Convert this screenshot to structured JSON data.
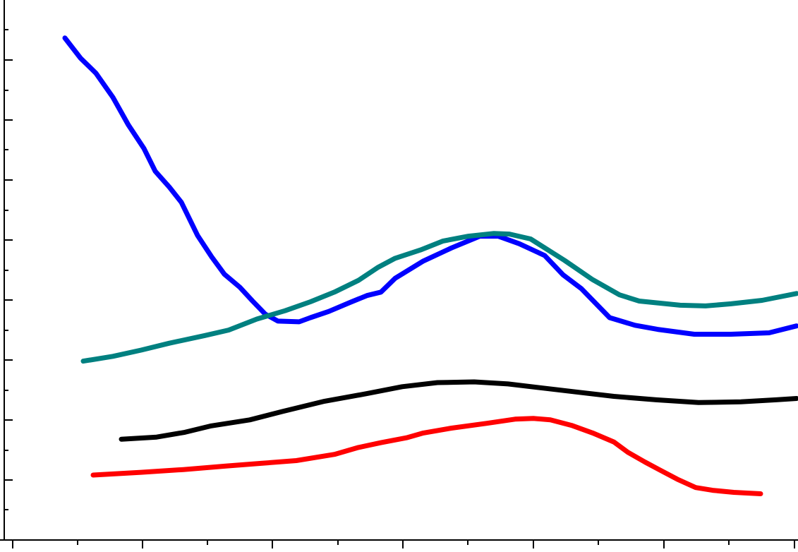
{
  "chart_data": {
    "type": "line",
    "title": "",
    "xlabel": "",
    "ylabel": "",
    "xlim": [
      0,
      1131
    ],
    "ylim": [
      0,
      782
    ],
    "grid": false,
    "legend": "none",
    "x_major_ticks": [
      18,
      202,
      386,
      571,
      756,
      941,
      1126
    ],
    "x_minor_ticks": [
      110,
      294,
      479,
      663,
      848,
      1033
    ],
    "y_major_ticks": [
      85,
      170,
      255,
      340,
      425,
      510,
      595,
      680
    ],
    "y_minor_ticks": [
      42,
      128,
      212,
      298,
      383,
      468,
      553,
      638,
      722
    ],
    "series": [
      {
        "color": "#0000ff",
        "x": [
          92,
          114,
          136,
          160,
          182,
          204,
          220,
          240,
          257,
          280,
          300,
          318,
          340,
          358,
          376,
          394,
          424,
          440,
          466,
          496,
          520,
          540,
          560,
          600,
          640,
          680,
          706,
          736,
          772,
          798,
          824,
          864,
          900,
          932,
          984,
          1036,
          1090,
          1129
        ],
        "y": [
          727,
          698,
          676,
          641,
          601,
          567,
          534,
          511,
          489,
          441,
          410,
          385,
          366,
          346,
          327,
          317,
          316,
          322,
          331,
          344,
          354,
          359,
          379,
          404,
          423,
          440,
          440,
          429,
          412,
          384,
          364,
          322,
          311,
          305,
          298,
          298,
          300,
          310
        ]
      },
      {
        "color": "#008080",
        "x": [
          118,
          160,
          200,
          240,
          290,
          324,
          364,
          404,
          440,
          474,
          508,
          536,
          560,
          596,
          628,
          664,
          700,
          722,
          752,
          800,
          840,
          878,
          906,
          964,
          1000,
          1036,
          1080,
          1129
        ],
        "y": [
          259,
          266,
          275,
          285,
          296,
          304,
          320,
          332,
          345,
          359,
          376,
          395,
          408,
          420,
          433,
          440,
          444,
          443,
          436,
          405,
          377,
          355,
          346,
          340,
          339,
          342,
          347,
          357
        ]
      },
      {
        "color": "#000000",
        "x": [
          172,
          222,
          262,
          298,
          354,
          400,
          460,
          520,
          570,
          620,
          672,
          720,
          770,
          820,
          870,
          930,
          990,
          1050,
          1100,
          1129
        ],
        "y": [
          146,
          149,
          156,
          165,
          174,
          186,
          201,
          212,
          222,
          228,
          229,
          226,
          220,
          214,
          208,
          203,
          199,
          200,
          203,
          205
        ]
      },
      {
        "color": "#ff0000",
        "x": [
          132,
          200,
          260,
          320,
          370,
          420,
          474,
          508,
          540,
          576,
          600,
          640,
          690,
          730,
          756,
          780,
          810,
          840,
          870,
          890,
          914,
          934,
          960,
          986,
          1010,
          1040,
          1078
        ],
        "y": [
          94,
          98,
          102,
          107,
          111,
          115,
          124,
          134,
          141,
          148,
          155,
          162,
          169,
          175,
          176,
          174,
          166,
          155,
          142,
          127,
          113,
          102,
          88,
          76,
          72,
          69,
          67
        ]
      }
    ]
  }
}
